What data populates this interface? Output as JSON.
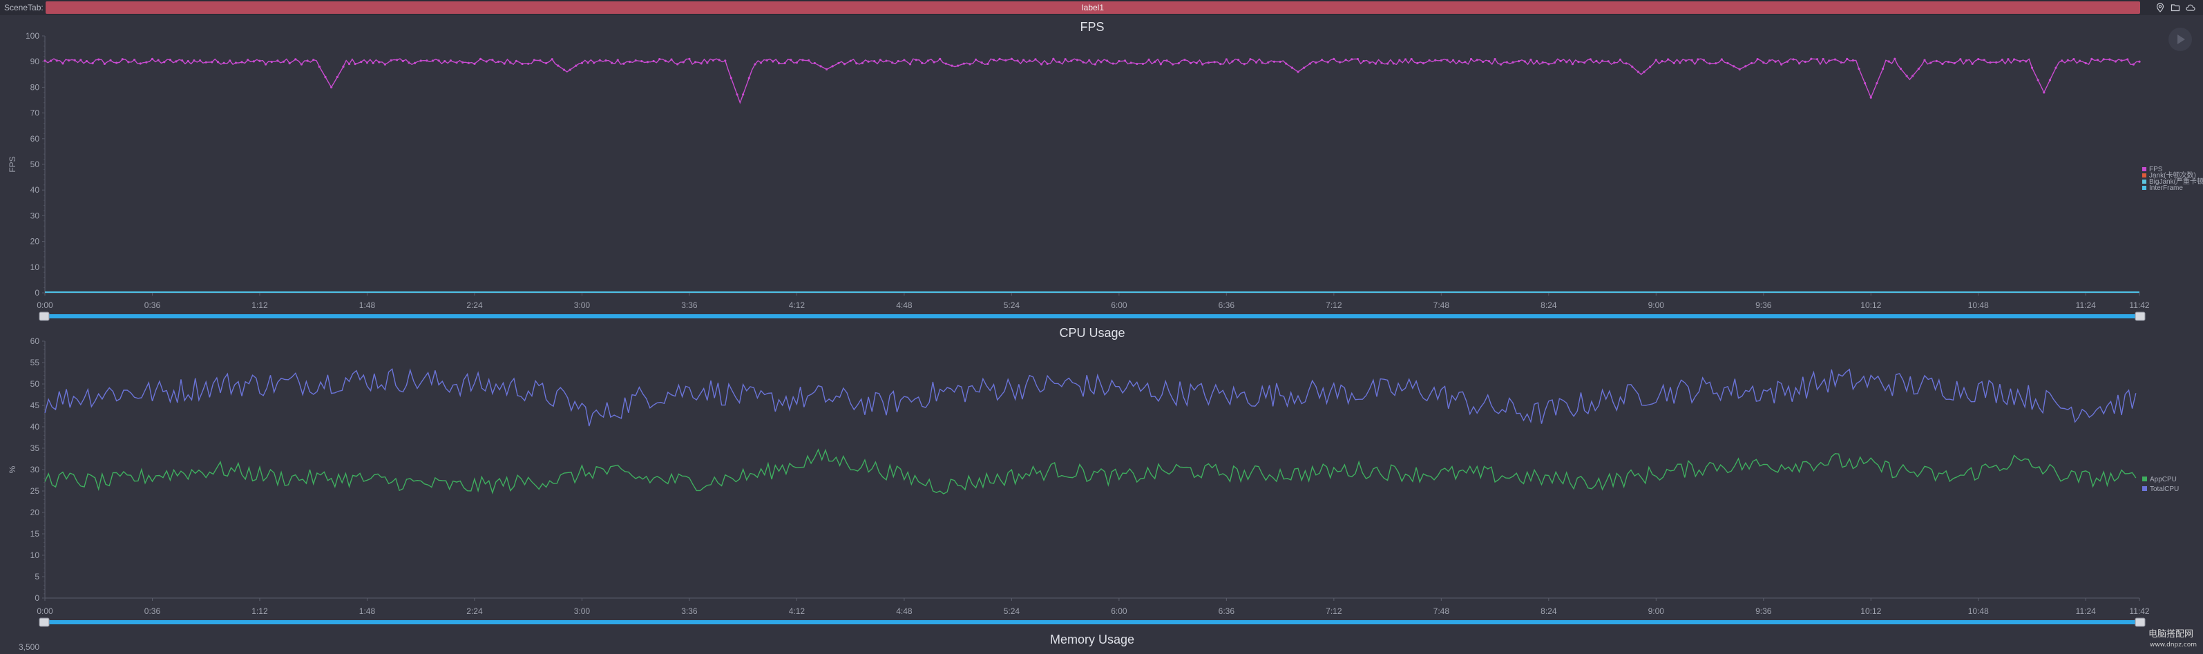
{
  "header": {
    "scene_tab": "SceneTab:",
    "label": "label1",
    "icons": [
      "location-icon",
      "folder-icon",
      "cloud-icon"
    ]
  },
  "watermark": {
    "line1": "电脑搭配网",
    "line2": "www.dnpz.com"
  },
  "colors": {
    "background": "#33343f",
    "fps": "#c84bd0",
    "jank": "#e05a3a",
    "bigjank": "#5dc6e0",
    "interframe": "#4fc3e8",
    "appcpu": "#3fae5f",
    "totalcpu": "#6b74d8",
    "slider": "#2fa8e8"
  },
  "chart_data": [
    {
      "type": "line",
      "title": "FPS",
      "ylabel": "FPS",
      "ylim": [
        0,
        100
      ],
      "yticks": [
        "0",
        "10",
        "20",
        "30",
        "40",
        "50",
        "60",
        "70",
        "80",
        "90",
        "100"
      ],
      "x_ticks": [
        "0:00",
        "0:36",
        "1:12",
        "1:48",
        "2:24",
        "3:00",
        "3:36",
        "4:12",
        "4:48",
        "5:24",
        "6:00",
        "6:36",
        "7:12",
        "7:48",
        "8:24",
        "9:00",
        "9:36",
        "10:12",
        "10:48",
        "11:24",
        "11:42"
      ],
      "x_range_seconds": [
        0,
        702
      ],
      "legend": [
        "FPS",
        "Jank(卡顿次数)",
        "BigJank(严重卡顿)",
        "InterFrame"
      ],
      "legend_position": "right",
      "series": [
        {
          "name": "FPS",
          "baseline": 90,
          "dips": [
            {
              "t": 96,
              "min": 80
            },
            {
              "t": 175,
              "min": 86
            },
            {
              "t": 233,
              "min": 74
            },
            {
              "t": 262,
              "min": 87
            },
            {
              "t": 305,
              "min": 88
            },
            {
              "t": 420,
              "min": 86
            },
            {
              "t": 535,
              "min": 85
            },
            {
              "t": 568,
              "min": 87
            },
            {
              "t": 612,
              "min": 76
            },
            {
              "t": 625,
              "min": 83
            },
            {
              "t": 670,
              "min": 78
            }
          ]
        },
        {
          "name": "Jank(卡顿次数)",
          "constant": 0
        },
        {
          "name": "BigJank(严重卡顿)",
          "constant": 0
        },
        {
          "name": "InterFrame",
          "constant": 0
        }
      ]
    },
    {
      "type": "line",
      "title": "CPU Usage",
      "ylabel": "%",
      "ylim": [
        0,
        60
      ],
      "yticks": [
        "0",
        "5",
        "10",
        "15",
        "20",
        "25",
        "30",
        "35",
        "40",
        "45",
        "50",
        "55",
        "60"
      ],
      "x_ticks": [
        "0:00",
        "0:36",
        "1:12",
        "1:48",
        "2:24",
        "3:00",
        "3:36",
        "4:12",
        "4:48",
        "5:24",
        "6:00",
        "6:36",
        "7:12",
        "7:48",
        "8:24",
        "9:00",
        "9:36",
        "10:12",
        "10:48",
        "11:24",
        "11:42"
      ],
      "x_range_seconds": [
        0,
        702
      ],
      "legend": [
        "AppCPU",
        "TotalCPU"
      ],
      "legend_position": "right",
      "series": [
        {
          "name": "TotalCPU",
          "x_seconds": [
            0,
            20,
            40,
            60,
            80,
            100,
            120,
            140,
            160,
            175,
            185,
            200,
            220,
            240,
            260,
            280,
            300,
            320,
            340,
            360,
            380,
            400,
            420,
            440,
            460,
            480,
            500,
            520,
            540,
            560,
            580,
            600,
            620,
            640,
            660,
            680,
            702
          ],
          "values": [
            46,
            48,
            48,
            50,
            50,
            51,
            51,
            50,
            49,
            46,
            42,
            47,
            49,
            46,
            47,
            45,
            48,
            49,
            50,
            49,
            48,
            47,
            48,
            48,
            49,
            45,
            43,
            46,
            48,
            49,
            48,
            51,
            50,
            49,
            48,
            44,
            46
          ]
        },
        {
          "name": "AppCPU",
          "x_seconds": [
            0,
            20,
            40,
            60,
            80,
            100,
            120,
            140,
            160,
            175,
            185,
            200,
            220,
            240,
            260,
            280,
            300,
            320,
            340,
            360,
            380,
            400,
            420,
            440,
            460,
            480,
            500,
            520,
            540,
            560,
            580,
            600,
            620,
            640,
            660,
            680,
            702
          ],
          "values": [
            28,
            27,
            29,
            30,
            28,
            28,
            27,
            26,
            27,
            28,
            30,
            28,
            27,
            29,
            33,
            30,
            26,
            28,
            30,
            28,
            30,
            29,
            29,
            30,
            29,
            29,
            28,
            27,
            29,
            31,
            31,
            32,
            30,
            28,
            32,
            28,
            28
          ]
        }
      ]
    },
    {
      "type": "line",
      "title": "Memory Usage",
      "yticks": [
        "3,500"
      ]
    }
  ]
}
